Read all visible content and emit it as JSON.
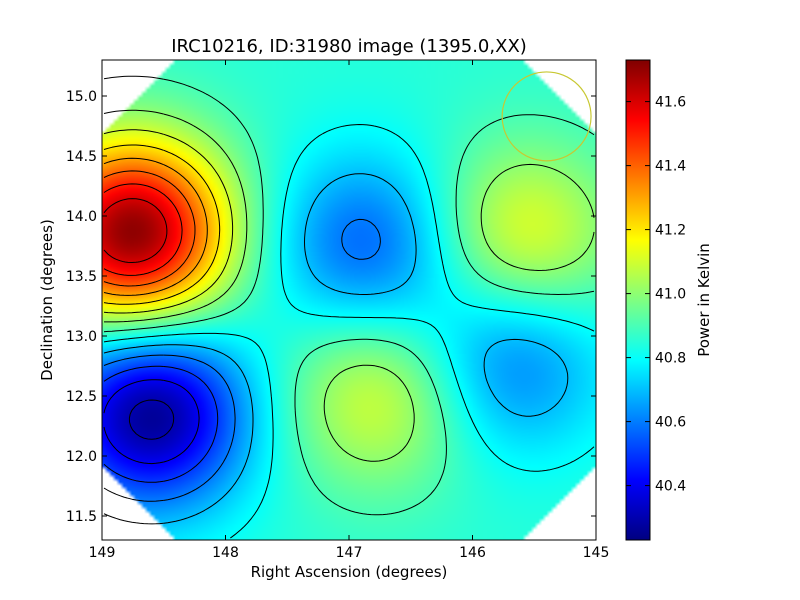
{
  "chart_data": {
    "type": "heatmap",
    "title": "IRC10216, ID:31980 image (1395.0,XX)",
    "xlabel": "Right Ascension (degrees)",
    "ylabel": "Declination (degrees)",
    "xlim": [
      149.0,
      145.0
    ],
    "ylim": [
      11.3,
      15.3
    ],
    "x_ticks": [
      "149",
      "148",
      "147",
      "146",
      "145"
    ],
    "x_tick_values": [
      149,
      148,
      147,
      146,
      145
    ],
    "y_ticks": [
      "11.5",
      "12.0",
      "12.5",
      "13.0",
      "13.5",
      "14.0",
      "14.5",
      "15.0"
    ],
    "y_tick_values": [
      11.5,
      12.0,
      12.5,
      13.0,
      13.5,
      14.0,
      14.5,
      15.0
    ],
    "colorbar": {
      "label": "Power in Kelvin",
      "range": [
        40.23,
        41.73
      ],
      "ticks": [
        "40.4",
        "40.6",
        "40.8",
        "41.0",
        "41.2",
        "41.4",
        "41.6"
      ],
      "tick_values": [
        40.4,
        40.6,
        40.8,
        41.0,
        41.2,
        41.4,
        41.6
      ],
      "colormap": "jet"
    },
    "features": [
      {
        "kind": "max",
        "ra": 148.75,
        "dec": 13.85,
        "value": 41.72
      },
      {
        "kind": "min",
        "ra": 148.6,
        "dec": 12.35,
        "value": 40.25
      },
      {
        "kind": "max",
        "ra": 146.75,
        "dec": 12.5,
        "value": 41.12
      },
      {
        "kind": "max",
        "ra": 145.6,
        "dec": 13.82,
        "value": 41.15
      },
      {
        "kind": "min",
        "ra": 146.85,
        "dec": 13.75,
        "value": 40.55
      },
      {
        "kind": "min",
        "ra": 145.7,
        "dec": 12.8,
        "value": 40.58
      }
    ],
    "beam_circle": {
      "ra": 145.4,
      "dec": 14.83,
      "radius_deg": 0.36,
      "color": "#c8c832"
    },
    "contour_color": "#000000"
  }
}
